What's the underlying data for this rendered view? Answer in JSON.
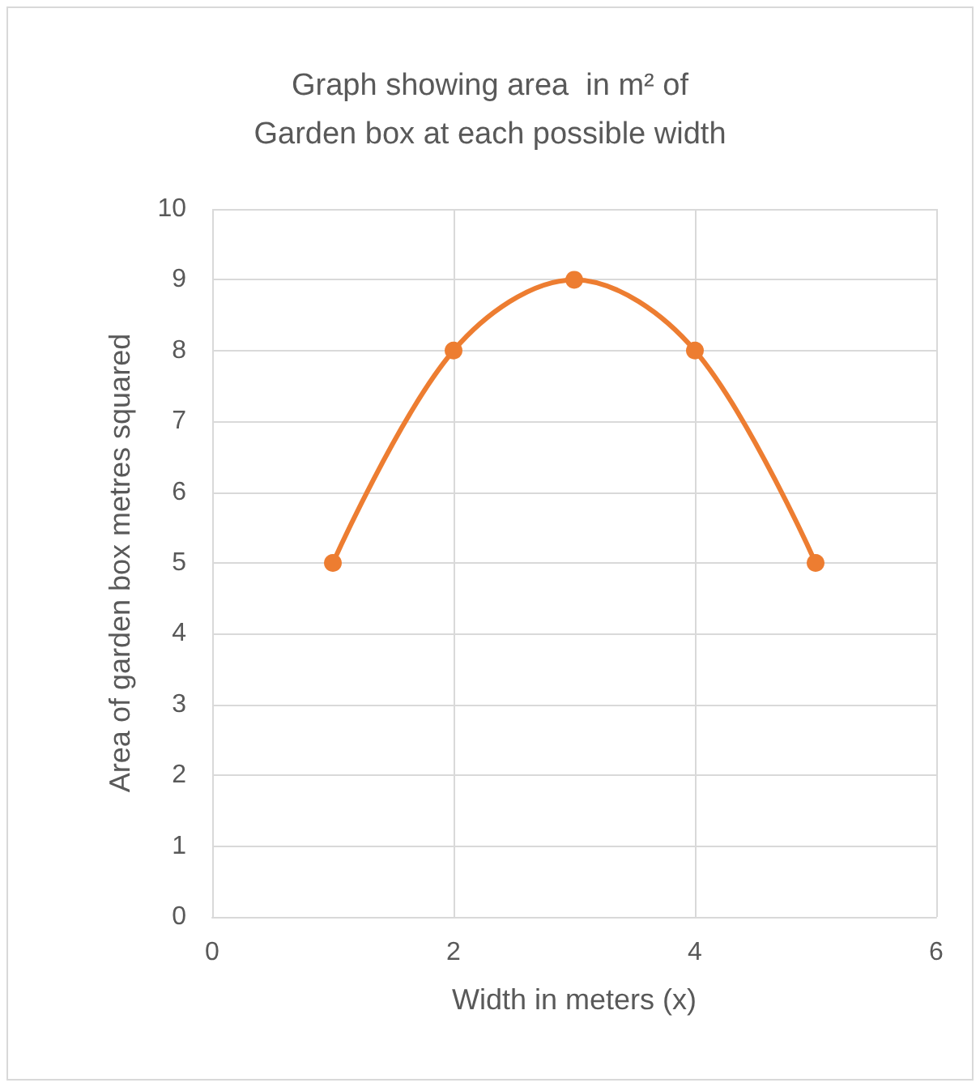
{
  "chart_data": {
    "type": "line",
    "title": "Graph showing area  in m² of\nGarden box at each possible width",
    "xlabel": "Width in meters (x)",
    "ylabel": "Area of garden box metres squared",
    "x": [
      1,
      2,
      3,
      4,
      5
    ],
    "series": [
      {
        "color": "#ed7d31",
        "values": [
          5,
          8,
          9,
          8,
          5
        ]
      }
    ],
    "xlim": [
      0,
      6
    ],
    "xticks": [
      0,
      2,
      4,
      6
    ],
    "ylim": [
      0,
      10
    ],
    "yticks": [
      0,
      1,
      2,
      3,
      4,
      5,
      6,
      7,
      8,
      9,
      10
    ],
    "grid": true,
    "marker": "circle",
    "line_style": "solid"
  }
}
